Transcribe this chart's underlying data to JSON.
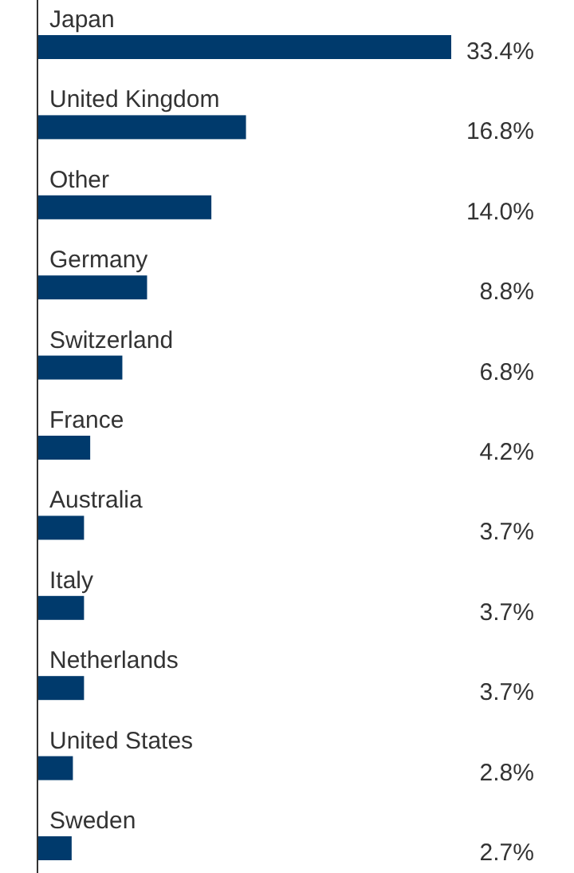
{
  "chart_data": {
    "type": "bar",
    "orientation": "horizontal",
    "categories": [
      "Japan",
      "United Kingdom",
      "Other",
      "Germany",
      "Switzerland",
      "France",
      "Australia",
      "Italy",
      "Netherlands",
      "United States",
      "Sweden"
    ],
    "values": [
      33.4,
      16.8,
      14.0,
      8.8,
      6.8,
      4.2,
      3.7,
      3.7,
      3.7,
      2.8,
      2.7
    ],
    "value_labels": [
      "33.4%",
      "16.8%",
      "14.0%",
      "8.8%",
      "6.8%",
      "4.2%",
      "3.7%",
      "3.7%",
      "3.7%",
      "2.8%",
      "2.7%"
    ],
    "color": "#003a6c"
  }
}
